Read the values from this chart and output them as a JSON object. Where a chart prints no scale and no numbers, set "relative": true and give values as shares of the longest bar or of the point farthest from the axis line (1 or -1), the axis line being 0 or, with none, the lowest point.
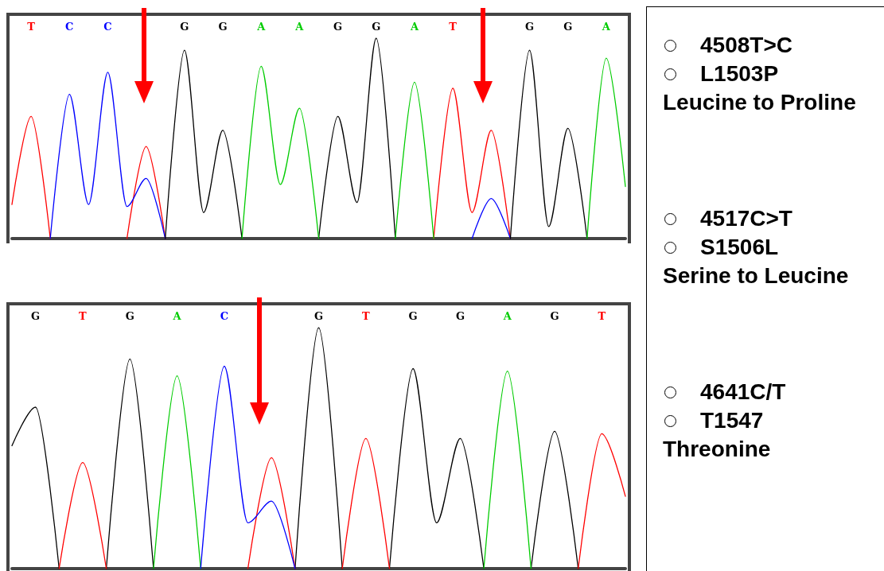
{
  "chart_data": [
    {
      "type": "line",
      "relative": true,
      "categories": [
        null,
        "T",
        null,
        "C",
        null,
        "C",
        null,
        null,
        null,
        "G",
        null,
        "G",
        null,
        "A",
        null,
        "A",
        null,
        "G",
        null,
        "G",
        null,
        "A",
        null,
        "T",
        null,
        null,
        null,
        "G",
        null,
        "G",
        null,
        "A",
        null
      ],
      "series": [
        {
          "color": "#ff0000",
          "values": [
            0.17,
            0.61,
            0,
            null,
            null,
            null,
            0,
            0.46,
            0,
            null,
            null,
            null,
            null,
            null,
            null,
            null,
            null,
            null,
            null,
            null,
            null,
            null,
            0,
            0.75,
            0.13,
            0.54,
            0,
            null,
            null,
            null,
            null,
            null,
            null
          ]
        },
        {
          "color": "#0000ff",
          "values": [
            null,
            null,
            0,
            0.72,
            0.17,
            0.83,
            0.16,
            0.3,
            0,
            null,
            null,
            null,
            null,
            null,
            null,
            null,
            null,
            null,
            null,
            null,
            null,
            null,
            null,
            null,
            0,
            0.2,
            0,
            null,
            null,
            null,
            null,
            null,
            null
          ]
        },
        {
          "color": "#000000",
          "values": [
            null,
            null,
            null,
            null,
            null,
            null,
            null,
            null,
            0,
            0.94,
            0.13,
            0.54,
            0,
            null,
            null,
            null,
            0,
            0.61,
            0.18,
            1,
            0,
            null,
            null,
            null,
            null,
            null,
            0,
            0.94,
            0.06,
            0.55,
            0,
            null,
            null
          ]
        },
        {
          "color": "#00cc00",
          "values": [
            null,
            null,
            null,
            null,
            null,
            null,
            null,
            null,
            null,
            null,
            null,
            null,
            0,
            0.86,
            0.27,
            0.65,
            0,
            null,
            null,
            null,
            0,
            0.78,
            0,
            null,
            null,
            null,
            null,
            null,
            null,
            null,
            0,
            0.9,
            0.26
          ]
        }
      ]
    },
    {
      "type": "line",
      "relative": true,
      "categories": [
        null,
        "G",
        null,
        "T",
        null,
        "G",
        null,
        "A",
        null,
        "C",
        null,
        null,
        null,
        "G",
        null,
        "T",
        null,
        "G",
        null,
        "G",
        null,
        "A",
        null,
        "G",
        null,
        "T",
        null
      ],
      "series": [
        {
          "color": "#000000",
          "values": [
            0.51,
            0.67,
            0,
            null,
            0,
            0.87,
            0,
            null,
            null,
            null,
            null,
            null,
            0,
            1,
            0,
            null,
            0,
            0.83,
            0.19,
            0.54,
            0,
            null,
            0,
            0.57,
            0,
            null,
            null
          ]
        },
        {
          "color": "#ff0000",
          "values": [
            null,
            null,
            0,
            0.44,
            0,
            null,
            null,
            null,
            null,
            null,
            0,
            0.46,
            0,
            null,
            0,
            0.54,
            0,
            null,
            null,
            null,
            null,
            null,
            null,
            null,
            0,
            0.56,
            0.3
          ]
        },
        {
          "color": "#00cc00",
          "values": [
            null,
            null,
            null,
            null,
            null,
            null,
            0,
            0.8,
            0,
            null,
            null,
            null,
            null,
            null,
            null,
            null,
            null,
            null,
            null,
            null,
            0,
            0.82,
            0,
            null,
            null,
            null,
            null
          ]
        },
        {
          "color": "#0000ff",
          "values": [
            null,
            null,
            null,
            null,
            null,
            null,
            null,
            null,
            0,
            0.84,
            0.19,
            0.28,
            0,
            null,
            null,
            null,
            null,
            null,
            null,
            null,
            null,
            null,
            null,
            null,
            null,
            null,
            null
          ]
        }
      ]
    },
    {
      "type": "other",
      "annotations": [
        "4508T>C",
        "L1503P",
        "Leucine to Proline",
        "4517C>T",
        "S1506L",
        "Serine to Leucine",
        "4641C/T",
        "T1547",
        "Threonine"
      ]
    }
  ]
}
